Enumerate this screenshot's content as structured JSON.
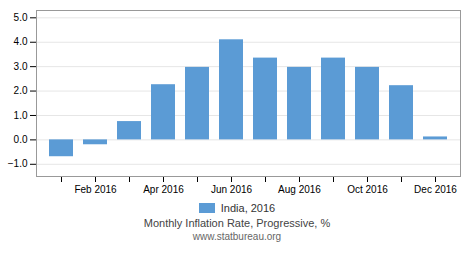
{
  "chart_data": {
    "type": "bar",
    "title": "Monthly Inflation Rate, Progressive, %",
    "subtitle": "www.statbureau.org",
    "categories": [
      null,
      "Feb 2016",
      null,
      "Apr 2016",
      null,
      "Jun 2016",
      null,
      "Aug 2016",
      null,
      "Oct 2016",
      null,
      "Dec 2016"
    ],
    "series": [
      {
        "name": "India, 2016",
        "color": "#5B9BD5",
        "values": [
          -0.69,
          -0.2,
          0.75,
          2.26,
          2.97,
          4.1,
          3.35,
          2.97,
          3.35,
          2.97,
          2.22,
          0.12
        ]
      }
    ],
    "ylim": [
      -1.5,
      5.3
    ],
    "yticks": [
      -1,
      0,
      1,
      2,
      3,
      4,
      5
    ],
    "grid": true,
    "legend": "bottom"
  }
}
